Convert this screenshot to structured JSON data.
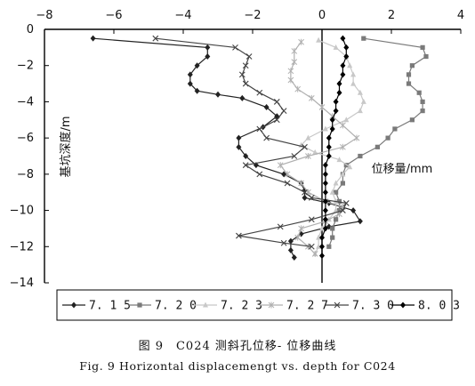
{
  "chart_data": {
    "type": "line",
    "xlabel": "位移量/mm",
    "ylabel": "基坑深度/m",
    "xlim": [
      -8,
      4
    ],
    "ylim": [
      0,
      -14
    ],
    "x_ticks": [
      "-8",
      "-6",
      "-4",
      "-2",
      "0",
      "2",
      "4"
    ],
    "y_ticks": [
      "0",
      "-2",
      "-4",
      "-6",
      "-8",
      "-10",
      "-12",
      "-14"
    ],
    "grid": false,
    "legend_position": "bottom",
    "series": [
      {
        "name": "7.15",
        "color": "#222222",
        "marker": "diamond",
        "points": [
          [
            -6.6,
            -0.5
          ],
          [
            -3.3,
            -1.0
          ],
          [
            -3.3,
            -1.5
          ],
          [
            -3.6,
            -2.0
          ],
          [
            -3.8,
            -2.5
          ],
          [
            -3.8,
            -3.0
          ],
          [
            -3.6,
            -3.4
          ],
          [
            -3.0,
            -3.6
          ],
          [
            -2.3,
            -3.8
          ],
          [
            -1.6,
            -4.3
          ],
          [
            -1.3,
            -4.8
          ],
          [
            -1.7,
            -5.4
          ],
          [
            -2.4,
            -6.0
          ],
          [
            -2.4,
            -6.5
          ],
          [
            -2.2,
            -7.0
          ],
          [
            -1.9,
            -7.5
          ],
          [
            -1.1,
            -8.0
          ],
          [
            -0.6,
            -8.5
          ],
          [
            -0.5,
            -8.9
          ],
          [
            -0.5,
            -9.3
          ],
          [
            0.2,
            -9.6
          ],
          [
            0.9,
            -10.0
          ],
          [
            1.1,
            -10.6
          ],
          [
            0.2,
            -10.9
          ],
          [
            -0.6,
            -11.3
          ],
          [
            -0.9,
            -11.7
          ],
          [
            -0.9,
            -12.2
          ],
          [
            -0.8,
            -12.6
          ]
        ]
      },
      {
        "name": "7.20",
        "color": "#7a7a7a",
        "marker": "square",
        "points": [
          [
            1.2,
            -0.5
          ],
          [
            2.9,
            -1.0
          ],
          [
            3.0,
            -1.5
          ],
          [
            2.6,
            -2.0
          ],
          [
            2.5,
            -2.5
          ],
          [
            2.5,
            -3.0
          ],
          [
            2.8,
            -3.5
          ],
          [
            2.9,
            -4.0
          ],
          [
            2.9,
            -4.5
          ],
          [
            2.6,
            -5.0
          ],
          [
            2.1,
            -5.5
          ],
          [
            1.9,
            -6.0
          ],
          [
            1.6,
            -6.5
          ],
          [
            1.1,
            -7.0
          ],
          [
            0.7,
            -7.5
          ],
          [
            0.6,
            -8.0
          ],
          [
            0.6,
            -8.5
          ],
          [
            0.4,
            -9.0
          ],
          [
            0.5,
            -9.5
          ],
          [
            0.5,
            -10.0
          ],
          [
            0.4,
            -10.5
          ],
          [
            0.3,
            -11.0
          ],
          [
            0.3,
            -11.5
          ],
          [
            0.2,
            -12.0
          ]
        ]
      },
      {
        "name": "7.23",
        "color": "#c8c8c8",
        "marker": "triangle",
        "points": [
          [
            -0.1,
            -0.6
          ],
          [
            0.4,
            -1.0
          ],
          [
            0.7,
            -1.5
          ],
          [
            0.8,
            -2.0
          ],
          [
            0.9,
            -2.5
          ],
          [
            0.9,
            -3.0
          ],
          [
            1.1,
            -3.5
          ],
          [
            1.2,
            -4.0
          ],
          [
            1.1,
            -4.5
          ],
          [
            0.7,
            -5.0
          ],
          [
            0.1,
            -5.5
          ],
          [
            -0.4,
            -6.0
          ],
          [
            -0.6,
            -6.4
          ],
          [
            -0.2,
            -6.8
          ],
          [
            0.5,
            -7.2
          ],
          [
            0.8,
            -7.6
          ],
          [
            0.6,
            -8.0
          ],
          [
            0.4,
            -8.5
          ],
          [
            0.3,
            -9.0
          ],
          [
            0.4,
            -9.5
          ],
          [
            0.4,
            -10.0
          ],
          [
            0.2,
            -10.5
          ],
          [
            0.0,
            -11.0
          ],
          [
            -0.1,
            -11.5
          ],
          [
            -0.1,
            -12.0
          ],
          [
            -0.2,
            -12.4
          ]
        ]
      },
      {
        "name": "7.27",
        "color": "#b0b0b0",
        "marker": "star",
        "points": [
          [
            -0.6,
            -0.7
          ],
          [
            -0.8,
            -1.2
          ],
          [
            -0.8,
            -1.8
          ],
          [
            -0.9,
            -2.3
          ],
          [
            -0.9,
            -2.8
          ],
          [
            -0.7,
            -3.3
          ],
          [
            -0.3,
            -3.8
          ],
          [
            0.0,
            -4.3
          ],
          [
            0.3,
            -4.8
          ],
          [
            0.6,
            -5.3
          ],
          [
            1.0,
            -6.0
          ],
          [
            0.6,
            -6.5
          ],
          [
            -0.4,
            -7.0
          ],
          [
            -1.2,
            -7.5
          ],
          [
            -1.0,
            -8.0
          ],
          [
            -0.6,
            -8.5
          ],
          [
            -0.4,
            -9.0
          ],
          [
            0.1,
            -9.5
          ],
          [
            0.6,
            -9.8
          ],
          [
            0.5,
            -10.2
          ],
          [
            0.1,
            -10.6
          ],
          [
            -0.6,
            -11.0
          ],
          [
            -0.7,
            -11.5
          ],
          [
            -0.4,
            -12.0
          ],
          [
            -0.2,
            -12.4
          ]
        ]
      },
      {
        "name": "7.30",
        "color": "#444444",
        "marker": "x",
        "points": [
          [
            -4.8,
            -0.5
          ],
          [
            -2.5,
            -1.0
          ],
          [
            -2.1,
            -1.5
          ],
          [
            -2.2,
            -2.0
          ],
          [
            -2.3,
            -2.5
          ],
          [
            -2.2,
            -3.0
          ],
          [
            -1.8,
            -3.5
          ],
          [
            -1.3,
            -4.0
          ],
          [
            -1.1,
            -4.5
          ],
          [
            -1.3,
            -5.0
          ],
          [
            -1.8,
            -5.5
          ],
          [
            -1.6,
            -6.0
          ],
          [
            -0.5,
            -6.5
          ],
          [
            -0.8,
            -7.0
          ],
          [
            -2.2,
            -7.5
          ],
          [
            -1.8,
            -8.0
          ],
          [
            -1.0,
            -8.5
          ],
          [
            -0.5,
            -9.0
          ],
          [
            -0.3,
            -9.3
          ],
          [
            0.7,
            -9.6
          ],
          [
            0.6,
            -10.0
          ],
          [
            -0.3,
            -10.5
          ],
          [
            -1.2,
            -10.9
          ],
          [
            -2.4,
            -11.4
          ],
          [
            -1.1,
            -11.8
          ],
          [
            -0.3,
            -12.0
          ]
        ]
      },
      {
        "name": "8.03",
        "color": "#000000",
        "marker": "diamond",
        "points": [
          [
            0.6,
            -0.5
          ],
          [
            0.7,
            -1.0
          ],
          [
            0.7,
            -1.5
          ],
          [
            0.6,
            -2.0
          ],
          [
            0.6,
            -2.5
          ],
          [
            0.5,
            -3.0
          ],
          [
            0.5,
            -3.5
          ],
          [
            0.4,
            -4.0
          ],
          [
            0.4,
            -4.5
          ],
          [
            0.3,
            -5.0
          ],
          [
            0.3,
            -5.5
          ],
          [
            0.2,
            -6.0
          ],
          [
            0.2,
            -6.5
          ],
          [
            0.2,
            -7.0
          ],
          [
            0.1,
            -7.5
          ],
          [
            0.1,
            -8.0
          ],
          [
            0.1,
            -8.5
          ],
          [
            0.1,
            -9.0
          ],
          [
            0.1,
            -9.5
          ],
          [
            0.1,
            -10.0
          ],
          [
            0.1,
            -10.5
          ],
          [
            0.1,
            -11.0
          ],
          [
            0.0,
            -11.5
          ],
          [
            0.0,
            -12.0
          ],
          [
            0.0,
            -12.5
          ]
        ]
      }
    ]
  },
  "caption": {
    "cn": "图 9　C024 测斜孔位移- 位移曲线",
    "en": "Fig. 9 Horizontal displacemengt vs. depth for C024"
  }
}
